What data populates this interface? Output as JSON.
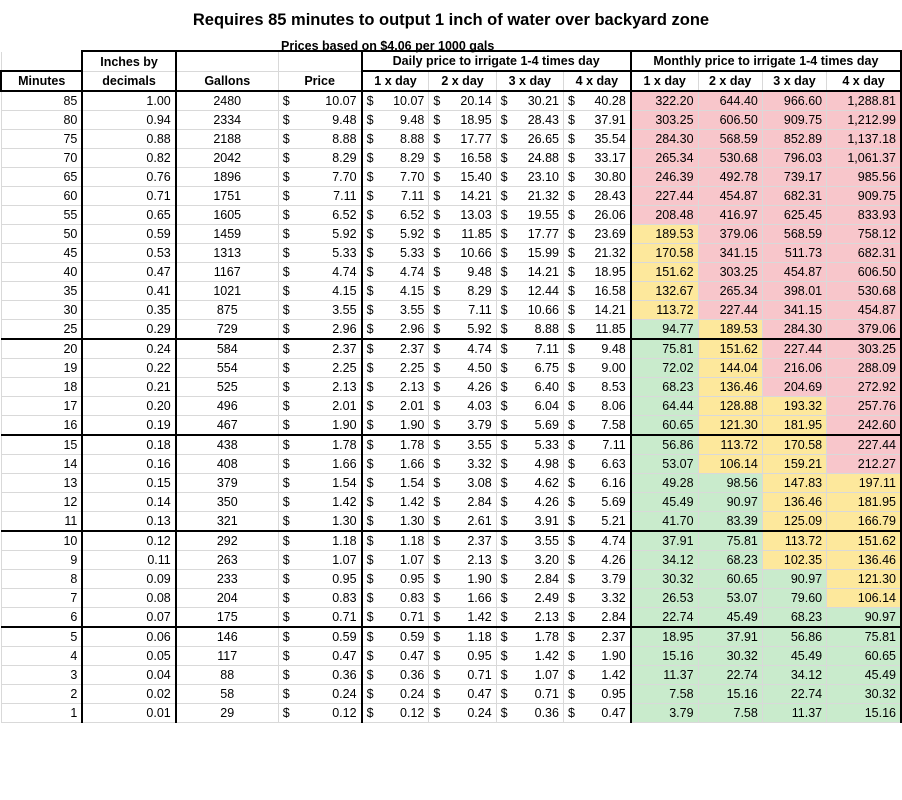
{
  "title": "Requires 85 minutes to output 1 inch of water over backyard zone",
  "subtitle": "Prices based on $4.06 per 1000 gals",
  "headers": {
    "group_daily": "Daily price to irrigate 1-4 times day",
    "group_monthly": "Monthly price to irrigate 1-4 times day",
    "minutes": "Minutes",
    "inches_top": "Inches by",
    "inches_bottom": "decimals",
    "gallons": "Gallons",
    "price": "Price",
    "d1": "1 x day",
    "d2": "2 x day",
    "d3": "3 x day",
    "d4": "4 x day",
    "m1": "1 x day",
    "m2": "2 x day",
    "m3": "3 x day",
    "m4": "4 x day"
  },
  "currency_symbol": "$",
  "colors": {
    "red": "#f8c6cb",
    "yellow": "#fde89c",
    "green": "#c9ebcc"
  },
  "rows": [
    {
      "minutes": "85",
      "inches": "1.00",
      "gallons": "2480",
      "price": "10.07",
      "daily": [
        "10.07",
        "20.14",
        "30.21",
        "40.28"
      ],
      "monthly": [
        "322.20",
        "644.40",
        "966.60",
        "1,288.81"
      ],
      "colors": [
        "red",
        "red",
        "red",
        "red"
      ]
    },
    {
      "minutes": "80",
      "inches": "0.94",
      "gallons": "2334",
      "price": "9.48",
      "daily": [
        "9.48",
        "18.95",
        "28.43",
        "37.91"
      ],
      "monthly": [
        "303.25",
        "606.50",
        "909.75",
        "1,212.99"
      ],
      "colors": [
        "red",
        "red",
        "red",
        "red"
      ]
    },
    {
      "minutes": "75",
      "inches": "0.88",
      "gallons": "2188",
      "price": "8.88",
      "daily": [
        "8.88",
        "17.77",
        "26.65",
        "35.54"
      ],
      "monthly": [
        "284.30",
        "568.59",
        "852.89",
        "1,137.18"
      ],
      "colors": [
        "red",
        "red",
        "red",
        "red"
      ]
    },
    {
      "minutes": "70",
      "inches": "0.82",
      "gallons": "2042",
      "price": "8.29",
      "daily": [
        "8.29",
        "16.58",
        "24.88",
        "33.17"
      ],
      "monthly": [
        "265.34",
        "530.68",
        "796.03",
        "1,061.37"
      ],
      "colors": [
        "red",
        "red",
        "red",
        "red"
      ]
    },
    {
      "minutes": "65",
      "inches": "0.76",
      "gallons": "1896",
      "price": "7.70",
      "daily": [
        "7.70",
        "15.40",
        "23.10",
        "30.80"
      ],
      "monthly": [
        "246.39",
        "492.78",
        "739.17",
        "985.56"
      ],
      "colors": [
        "red",
        "red",
        "red",
        "red"
      ]
    },
    {
      "minutes": "60",
      "inches": "0.71",
      "gallons": "1751",
      "price": "7.11",
      "daily": [
        "7.11",
        "14.21",
        "21.32",
        "28.43"
      ],
      "monthly": [
        "227.44",
        "454.87",
        "682.31",
        "909.75"
      ],
      "colors": [
        "red",
        "red",
        "red",
        "red"
      ]
    },
    {
      "minutes": "55",
      "inches": "0.65",
      "gallons": "1605",
      "price": "6.52",
      "daily": [
        "6.52",
        "13.03",
        "19.55",
        "26.06"
      ],
      "monthly": [
        "208.48",
        "416.97",
        "625.45",
        "833.93"
      ],
      "colors": [
        "red",
        "red",
        "red",
        "red"
      ]
    },
    {
      "minutes": "50",
      "inches": "0.59",
      "gallons": "1459",
      "price": "5.92",
      "daily": [
        "5.92",
        "11.85",
        "17.77",
        "23.69"
      ],
      "monthly": [
        "189.53",
        "379.06",
        "568.59",
        "758.12"
      ],
      "colors": [
        "yellow",
        "red",
        "red",
        "red"
      ]
    },
    {
      "minutes": "45",
      "inches": "0.53",
      "gallons": "1313",
      "price": "5.33",
      "daily": [
        "5.33",
        "10.66",
        "15.99",
        "21.32"
      ],
      "monthly": [
        "170.58",
        "341.15",
        "511.73",
        "682.31"
      ],
      "colors": [
        "yellow",
        "red",
        "red",
        "red"
      ]
    },
    {
      "minutes": "40",
      "inches": "0.47",
      "gallons": "1167",
      "price": "4.74",
      "daily": [
        "4.74",
        "9.48",
        "14.21",
        "18.95"
      ],
      "monthly": [
        "151.62",
        "303.25",
        "454.87",
        "606.50"
      ],
      "colors": [
        "yellow",
        "red",
        "red",
        "red"
      ]
    },
    {
      "minutes": "35",
      "inches": "0.41",
      "gallons": "1021",
      "price": "4.15",
      "daily": [
        "4.15",
        "8.29",
        "12.44",
        "16.58"
      ],
      "monthly": [
        "132.67",
        "265.34",
        "398.01",
        "530.68"
      ],
      "colors": [
        "yellow",
        "red",
        "red",
        "red"
      ]
    },
    {
      "minutes": "30",
      "inches": "0.35",
      "gallons": "875",
      "price": "3.55",
      "daily": [
        "3.55",
        "7.11",
        "10.66",
        "14.21"
      ],
      "monthly": [
        "113.72",
        "227.44",
        "341.15",
        "454.87"
      ],
      "colors": [
        "yellow",
        "red",
        "red",
        "red"
      ]
    },
    {
      "minutes": "25",
      "inches": "0.29",
      "gallons": "729",
      "price": "2.96",
      "daily": [
        "2.96",
        "5.92",
        "8.88",
        "11.85"
      ],
      "monthly": [
        "94.77",
        "189.53",
        "284.30",
        "379.06"
      ],
      "colors": [
        "green",
        "yellow",
        "red",
        "red"
      ]
    },
    {
      "minutes": "20",
      "inches": "0.24",
      "gallons": "584",
      "price": "2.37",
      "daily": [
        "2.37",
        "4.74",
        "7.11",
        "9.48"
      ],
      "monthly": [
        "75.81",
        "151.62",
        "227.44",
        "303.25"
      ],
      "colors": [
        "green",
        "yellow",
        "red",
        "red"
      ]
    },
    {
      "minutes": "19",
      "inches": "0.22",
      "gallons": "554",
      "price": "2.25",
      "daily": [
        "2.25",
        "4.50",
        "6.75",
        "9.00"
      ],
      "monthly": [
        "72.02",
        "144.04",
        "216.06",
        "288.09"
      ],
      "colors": [
        "green",
        "yellow",
        "red",
        "red"
      ]
    },
    {
      "minutes": "18",
      "inches": "0.21",
      "gallons": "525",
      "price": "2.13",
      "daily": [
        "2.13",
        "4.26",
        "6.40",
        "8.53"
      ],
      "monthly": [
        "68.23",
        "136.46",
        "204.69",
        "272.92"
      ],
      "colors": [
        "green",
        "yellow",
        "red",
        "red"
      ]
    },
    {
      "minutes": "17",
      "inches": "0.20",
      "gallons": "496",
      "price": "2.01",
      "daily": [
        "2.01",
        "4.03",
        "6.04",
        "8.06"
      ],
      "monthly": [
        "64.44",
        "128.88",
        "193.32",
        "257.76"
      ],
      "colors": [
        "green",
        "yellow",
        "yellow",
        "red"
      ]
    },
    {
      "minutes": "16",
      "inches": "0.19",
      "gallons": "467",
      "price": "1.90",
      "daily": [
        "1.90",
        "3.79",
        "5.69",
        "7.58"
      ],
      "monthly": [
        "60.65",
        "121.30",
        "181.95",
        "242.60"
      ],
      "colors": [
        "green",
        "yellow",
        "yellow",
        "red"
      ]
    },
    {
      "minutes": "15",
      "inches": "0.18",
      "gallons": "438",
      "price": "1.78",
      "daily": [
        "1.78",
        "3.55",
        "5.33",
        "7.11"
      ],
      "monthly": [
        "56.86",
        "113.72",
        "170.58",
        "227.44"
      ],
      "colors": [
        "green",
        "yellow",
        "yellow",
        "red"
      ]
    },
    {
      "minutes": "14",
      "inches": "0.16",
      "gallons": "408",
      "price": "1.66",
      "daily": [
        "1.66",
        "3.32",
        "4.98",
        "6.63"
      ],
      "monthly": [
        "53.07",
        "106.14",
        "159.21",
        "212.27"
      ],
      "colors": [
        "green",
        "yellow",
        "yellow",
        "red"
      ]
    },
    {
      "minutes": "13",
      "inches": "0.15",
      "gallons": "379",
      "price": "1.54",
      "daily": [
        "1.54",
        "3.08",
        "4.62",
        "6.16"
      ],
      "monthly": [
        "49.28",
        "98.56",
        "147.83",
        "197.11"
      ],
      "colors": [
        "green",
        "green",
        "yellow",
        "yellow"
      ]
    },
    {
      "minutes": "12",
      "inches": "0.14",
      "gallons": "350",
      "price": "1.42",
      "daily": [
        "1.42",
        "2.84",
        "4.26",
        "5.69"
      ],
      "monthly": [
        "45.49",
        "90.97",
        "136.46",
        "181.95"
      ],
      "colors": [
        "green",
        "green",
        "yellow",
        "yellow"
      ]
    },
    {
      "minutes": "11",
      "inches": "0.13",
      "gallons": "321",
      "price": "1.30",
      "daily": [
        "1.30",
        "2.61",
        "3.91",
        "5.21"
      ],
      "monthly": [
        "41.70",
        "83.39",
        "125.09",
        "166.79"
      ],
      "colors": [
        "green",
        "green",
        "yellow",
        "yellow"
      ]
    },
    {
      "minutes": "10",
      "inches": "0.12",
      "gallons": "292",
      "price": "1.18",
      "daily": [
        "1.18",
        "2.37",
        "3.55",
        "4.74"
      ],
      "monthly": [
        "37.91",
        "75.81",
        "113.72",
        "151.62"
      ],
      "colors": [
        "green",
        "green",
        "yellow",
        "yellow"
      ]
    },
    {
      "minutes": "9",
      "inches": "0.11",
      "gallons": "263",
      "price": "1.07",
      "daily": [
        "1.07",
        "2.13",
        "3.20",
        "4.26"
      ],
      "monthly": [
        "34.12",
        "68.23",
        "102.35",
        "136.46"
      ],
      "colors": [
        "green",
        "green",
        "yellow",
        "yellow"
      ]
    },
    {
      "minutes": "8",
      "inches": "0.09",
      "gallons": "233",
      "price": "0.95",
      "daily": [
        "0.95",
        "1.90",
        "2.84",
        "3.79"
      ],
      "monthly": [
        "30.32",
        "60.65",
        "90.97",
        "121.30"
      ],
      "colors": [
        "green",
        "green",
        "green",
        "yellow"
      ]
    },
    {
      "minutes": "7",
      "inches": "0.08",
      "gallons": "204",
      "price": "0.83",
      "daily": [
        "0.83",
        "1.66",
        "2.49",
        "3.32"
      ],
      "monthly": [
        "26.53",
        "53.07",
        "79.60",
        "106.14"
      ],
      "colors": [
        "green",
        "green",
        "green",
        "yellow"
      ]
    },
    {
      "minutes": "6",
      "inches": "0.07",
      "gallons": "175",
      "price": "0.71",
      "daily": [
        "0.71",
        "1.42",
        "2.13",
        "2.84"
      ],
      "monthly": [
        "22.74",
        "45.49",
        "68.23",
        "90.97"
      ],
      "colors": [
        "green",
        "green",
        "green",
        "green"
      ]
    },
    {
      "minutes": "5",
      "inches": "0.06",
      "gallons": "146",
      "price": "0.59",
      "daily": [
        "0.59",
        "1.18",
        "1.78",
        "2.37"
      ],
      "monthly": [
        "18.95",
        "37.91",
        "56.86",
        "75.81"
      ],
      "colors": [
        "green",
        "green",
        "green",
        "green"
      ]
    },
    {
      "minutes": "4",
      "inches": "0.05",
      "gallons": "117",
      "price": "0.47",
      "daily": [
        "0.47",
        "0.95",
        "1.42",
        "1.90"
      ],
      "monthly": [
        "15.16",
        "30.32",
        "45.49",
        "60.65"
      ],
      "colors": [
        "green",
        "green",
        "green",
        "green"
      ]
    },
    {
      "minutes": "3",
      "inches": "0.04",
      "gallons": "88",
      "price": "0.36",
      "daily": [
        "0.36",
        "0.71",
        "1.07",
        "1.42"
      ],
      "monthly": [
        "11.37",
        "22.74",
        "34.12",
        "45.49"
      ],
      "colors": [
        "green",
        "green",
        "green",
        "green"
      ]
    },
    {
      "minutes": "2",
      "inches": "0.02",
      "gallons": "58",
      "price": "0.24",
      "daily": [
        "0.24",
        "0.47",
        "0.71",
        "0.95"
      ],
      "monthly": [
        "7.58",
        "15.16",
        "22.74",
        "30.32"
      ],
      "colors": [
        "green",
        "green",
        "green",
        "green"
      ]
    },
    {
      "minutes": "1",
      "inches": "0.01",
      "gallons": "29",
      "price": "0.12",
      "daily": [
        "0.12",
        "0.24",
        "0.36",
        "0.47"
      ],
      "monthly": [
        "3.79",
        "7.58",
        "11.37",
        "15.16"
      ],
      "colors": [
        "green",
        "green",
        "green",
        "green"
      ]
    }
  ]
}
